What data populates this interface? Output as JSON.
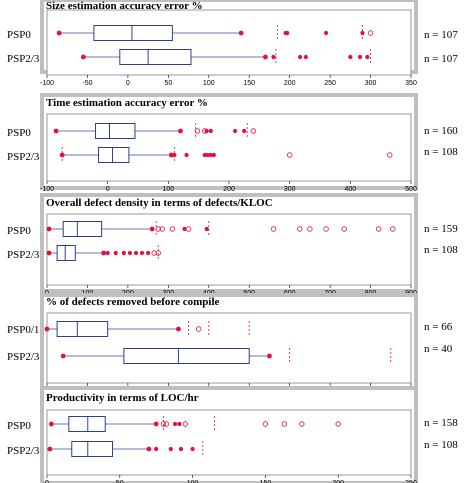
{
  "chart_data": [
    {
      "type": "boxplot",
      "title": "Size estimation accuracy error  %",
      "xlim": [
        -100,
        350
      ],
      "ticks": [
        -100,
        -50,
        0,
        50,
        100,
        150,
        200,
        250,
        300,
        350
      ],
      "tick_labels": [
        "-100",
        "-50",
        "0",
        "50",
        "100",
        "150",
        "200",
        "250",
        "300",
        "350"
      ],
      "rows": [
        {
          "label": "PSP0",
          "n": "n = 107",
          "whisker_low": -85,
          "q1": -42,
          "median": 5,
          "q3": 55,
          "whisker_high": 140,
          "outliers_filled": [
            195,
            197,
            245,
            290
          ],
          "outliers_open": [
            300
          ],
          "dashed": [
            185,
            290
          ]
        },
        {
          "label": "PSP2/3",
          "n": "n = 107",
          "whisker_low": -55,
          "q1": -10,
          "median": 25,
          "q3": 78,
          "whisker_high": 170,
          "outliers_filled": [
            180,
            213,
            220,
            275,
            287,
            296
          ],
          "outliers_open": [],
          "dashed": [
            183,
            300
          ]
        }
      ]
    },
    {
      "type": "boxplot",
      "title": "Time estimation accuracy error  %",
      "xlim": [
        -100,
        500
      ],
      "ticks": [
        -100,
        0,
        100,
        200,
        300,
        400,
        500
      ],
      "tick_labels": [
        "-100",
        "0",
        "100",
        "200",
        "300",
        "400",
        "500"
      ],
      "rows": [
        {
          "label": "PSP0",
          "n": "n = 160",
          "whisker_low": -85,
          "q1": -20,
          "median": 3,
          "q3": 45,
          "whisker_high": 120,
          "outliers_filled": [
            163,
            170,
            210,
            225
          ],
          "outliers_open": [
            148,
            160,
            240
          ],
          "dashed": [
            145,
            230
          ]
        },
        {
          "label": "PSP2/3",
          "n": "n = 108",
          "whisker_low": -75,
          "q1": -15,
          "median": 8,
          "q3": 35,
          "whisker_high": 105,
          "outliers_filled": [
            110,
            130,
            160,
            165,
            170,
            175
          ],
          "outliers_open": [
            300,
            465
          ],
          "dashed": [
            -75,
            110
          ]
        }
      ]
    },
    {
      "type": "boxplot",
      "title": "Overall defect density in terms of defects/KLOC",
      "xlim": [
        0,
        900
      ],
      "ticks": [
        0,
        100,
        200,
        300,
        400,
        500,
        600,
        700,
        800,
        900
      ],
      "tick_labels": [
        "0",
        "100",
        "200",
        "300",
        "400",
        "500",
        "600",
        "700",
        "800",
        "900"
      ],
      "rows": [
        {
          "label": "PSP0",
          "n": "n = 159",
          "whisker_low": 5,
          "q1": 40,
          "median": 75,
          "q3": 135,
          "whisker_high": 260,
          "outliers_filled": [
            340,
            395
          ],
          "outliers_open": [
            275,
            285,
            310,
            350,
            560,
            625,
            650,
            690,
            735,
            820,
            855
          ],
          "dashed": [
            270,
            400
          ]
        },
        {
          "label": "PSP2/3",
          "n": "n = 108",
          "whisker_low": 5,
          "q1": 25,
          "median": 45,
          "q3": 70,
          "whisker_high": 140,
          "outliers_filled": [
            150,
            170,
            190,
            205,
            220,
            235,
            250
          ],
          "outliers_open": [
            265,
            275
          ],
          "dashed": [
            275
          ]
        }
      ]
    },
    {
      "type": "boxplot",
      "title": "% of defects removed before compile",
      "xlim": [
        0,
        180
      ],
      "ticks": [
        0,
        20,
        40,
        60,
        80,
        100,
        120,
        140,
        160,
        180
      ],
      "tick_labels": [
        "0",
        "20",
        "40",
        "60",
        "80",
        "100",
        "120",
        "140",
        "160",
        "180"
      ],
      "rows": [
        {
          "label": "PSP0/1",
          "n": "n = 66",
          "whisker_low": 0,
          "q1": 5,
          "median": 15,
          "q3": 30,
          "whisker_high": 65,
          "outliers_filled": [],
          "outliers_open": [
            75
          ],
          "dashed": [
            70,
            80,
            100
          ]
        },
        {
          "label": "PSP2/3",
          "n": "n = 40",
          "whisker_low": 8,
          "q1": 38,
          "median": 65,
          "q3": 100,
          "whisker_high": 110,
          "outliers_filled": [
            110
          ],
          "outliers_open": [],
          "dashed": [
            120,
            170
          ]
        }
      ]
    },
    {
      "type": "boxplot",
      "title": "Productivity in terms of LOC/hr",
      "xlim": [
        0,
        250
      ],
      "ticks": [
        0,
        50,
        100,
        150,
        200,
        250
      ],
      "tick_labels": [
        "0",
        "50",
        "100",
        "150",
        "200",
        "250"
      ],
      "rows": [
        {
          "label": "PSP0",
          "n": "n = 158",
          "whisker_low": 3,
          "q1": 15,
          "median": 28,
          "q3": 40,
          "whisker_high": 75,
          "outliers_filled": [
            88,
            91
          ],
          "outliers_open": [
            80,
            82,
            95,
            150,
            163,
            175,
            200
          ],
          "dashed": [
            80,
            115
          ]
        },
        {
          "label": "PSP2/3",
          "n": "n = 108",
          "whisker_low": 2,
          "q1": 17,
          "median": 28,
          "q3": 45,
          "whisker_high": 70,
          "outliers_filled": [
            75,
            85,
            92,
            100
          ],
          "outliers_open": [],
          "dashed": [
            107
          ]
        }
      ]
    }
  ]
}
